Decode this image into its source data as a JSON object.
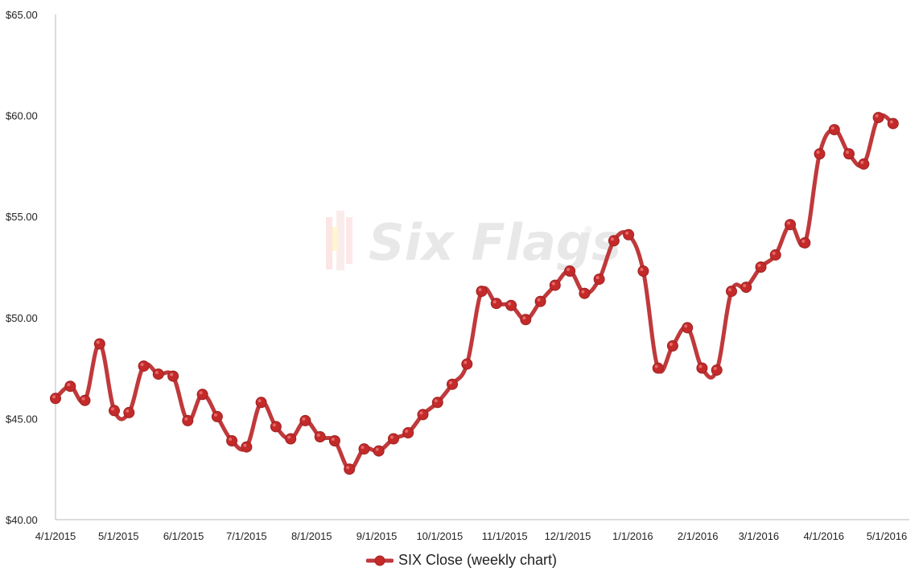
{
  "chart_data": {
    "type": "line",
    "title": "",
    "xlabel": "",
    "ylabel": "",
    "ylim": [
      40,
      65
    ],
    "y_ticks": [
      "$40.00",
      "$45.00",
      "$50.00",
      "$55.00",
      "$60.00",
      "$65.00"
    ],
    "x_ticks": [
      "4/1/2015",
      "5/1/2015",
      "6/1/2015",
      "7/1/2015",
      "8/1/2015",
      "9/1/2015",
      "10/1/2015",
      "11/1/2015",
      "12/1/2015",
      "1/1/2016",
      "2/1/2016",
      "3/1/2016",
      "4/1/2016",
      "5/1/2016"
    ],
    "x": [
      "2015-04-01",
      "2015-04-08",
      "2015-04-15",
      "2015-04-22",
      "2015-04-29",
      "2015-05-06",
      "2015-05-13",
      "2015-05-20",
      "2015-05-27",
      "2015-06-03",
      "2015-06-10",
      "2015-06-17",
      "2015-06-24",
      "2015-07-01",
      "2015-07-08",
      "2015-07-15",
      "2015-07-22",
      "2015-07-29",
      "2015-08-05",
      "2015-08-12",
      "2015-08-19",
      "2015-08-26",
      "2015-09-02",
      "2015-09-09",
      "2015-09-16",
      "2015-09-23",
      "2015-09-30",
      "2015-10-07",
      "2015-10-14",
      "2015-10-21",
      "2015-10-28",
      "2015-11-04",
      "2015-11-11",
      "2015-11-18",
      "2015-11-25",
      "2015-12-02",
      "2015-12-09",
      "2015-12-16",
      "2015-12-23",
      "2015-12-30",
      "2016-01-06",
      "2016-01-13",
      "2016-01-20",
      "2016-01-27",
      "2016-02-03",
      "2016-02-10",
      "2016-02-17",
      "2016-02-24",
      "2016-03-02",
      "2016-03-09",
      "2016-03-16",
      "2016-03-23",
      "2016-03-30",
      "2016-04-06",
      "2016-04-13",
      "2016-04-20",
      "2016-04-27",
      "2016-05-04"
    ],
    "series": [
      {
        "name": "SIX Close (weekly chart)",
        "color": "#c0393b",
        "values": [
          46.0,
          46.6,
          45.9,
          48.7,
          45.4,
          45.3,
          47.6,
          47.2,
          47.1,
          44.9,
          46.2,
          45.1,
          43.9,
          43.6,
          45.8,
          44.6,
          44.0,
          44.9,
          44.1,
          43.9,
          42.5,
          43.5,
          43.4,
          44.0,
          44.3,
          45.2,
          45.8,
          46.7,
          47.7,
          51.3,
          50.7,
          50.6,
          49.9,
          50.8,
          51.6,
          52.3,
          51.2,
          51.9,
          53.8,
          54.1,
          52.3,
          47.5,
          48.6,
          49.5,
          47.5,
          47.4,
          51.3,
          51.5,
          52.5,
          53.1,
          54.6,
          53.7,
          58.1,
          59.3,
          58.1,
          57.6,
          59.9,
          59.6
        ]
      }
    ],
    "grid": false,
    "legend_position": "bottom"
  },
  "watermark": {
    "text": "Six Flags",
    "registered_mark": "®"
  },
  "legend": {
    "label": "SIX Close (weekly chart)"
  }
}
